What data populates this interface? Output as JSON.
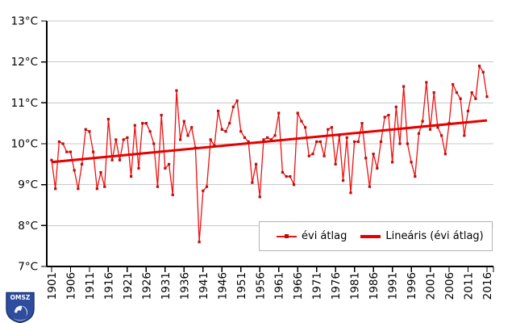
{
  "chart_data": {
    "type": "line",
    "title": "",
    "xlabel": "",
    "ylabel": "",
    "ylim": [
      7,
      13
    ],
    "grid": true,
    "legend_position": "bottom-inside",
    "ytick_labels": [
      "7°C",
      "8°C",
      "9°C",
      "10°C",
      "11°C",
      "12°C",
      "13°C"
    ],
    "xtick_labels": [
      "1901",
      "1906",
      "1911",
      "1916",
      "1921",
      "1926",
      "1931",
      "1936",
      "1941",
      "1946",
      "1951",
      "1956",
      "1961",
      "1966",
      "1971",
      "1976",
      "1981",
      "1986",
      "1991",
      "1996",
      "2001",
      "2006",
      "2011",
      "2016"
    ],
    "x": [
      1901,
      1902,
      1903,
      1904,
      1905,
      1906,
      1907,
      1908,
      1909,
      1910,
      1911,
      1912,
      1913,
      1914,
      1915,
      1916,
      1917,
      1918,
      1919,
      1920,
      1921,
      1922,
      1923,
      1924,
      1925,
      1926,
      1927,
      1928,
      1929,
      1930,
      1931,
      1932,
      1933,
      1934,
      1935,
      1936,
      1937,
      1938,
      1939,
      1940,
      1941,
      1942,
      1943,
      1944,
      1945,
      1946,
      1947,
      1948,
      1949,
      1950,
      1951,
      1952,
      1953,
      1954,
      1955,
      1956,
      1957,
      1958,
      1959,
      1960,
      1961,
      1962,
      1963,
      1964,
      1965,
      1966,
      1967,
      1968,
      1969,
      1970,
      1971,
      1972,
      1973,
      1974,
      1975,
      1976,
      1977,
      1978,
      1979,
      1980,
      1981,
      1982,
      1983,
      1984,
      1985,
      1986,
      1987,
      1988,
      1989,
      1990,
      1991,
      1992,
      1993,
      1994,
      1995,
      1996,
      1997,
      1998,
      1999,
      2000,
      2001,
      2002,
      2003,
      2004,
      2005,
      2006,
      2007,
      2008,
      2009,
      2010,
      2011,
      2012,
      2013,
      2014,
      2015,
      2016
    ],
    "series": [
      {
        "name": "évi átlag",
        "style": "line-with-square-markers",
        "color": "#ee1111",
        "marker_color": "#bb0f0f",
        "values": [
          9.6,
          8.9,
          10.05,
          10.0,
          9.8,
          9.8,
          9.35,
          8.9,
          9.5,
          10.35,
          10.3,
          9.8,
          8.9,
          9.3,
          8.95,
          10.6,
          9.6,
          10.1,
          9.6,
          10.1,
          10.15,
          9.2,
          10.45,
          9.4,
          10.5,
          10.5,
          10.3,
          10.0,
          8.95,
          10.7,
          9.4,
          9.5,
          8.75,
          11.3,
          10.1,
          10.55,
          10.2,
          10.4,
          9.9,
          7.6,
          8.85,
          8.95,
          10.1,
          9.95,
          10.8,
          10.35,
          10.3,
          10.5,
          10.9,
          11.05,
          10.3,
          10.15,
          10.05,
          9.05,
          9.5,
          8.7,
          10.1,
          10.15,
          10.1,
          10.2,
          10.75,
          9.3,
          9.2,
          9.2,
          9.0,
          10.75,
          10.55,
          10.4,
          9.7,
          9.75,
          10.05,
          10.05,
          9.7,
          10.35,
          10.4,
          9.5,
          10.2,
          9.1,
          10.15,
          8.8,
          10.05,
          10.05,
          10.5,
          9.65,
          8.95,
          9.75,
          9.4,
          10.05,
          10.65,
          10.7,
          9.55,
          10.9,
          10.0,
          11.4,
          10.0,
          9.55,
          9.2,
          10.25,
          10.55,
          11.5,
          10.35,
          11.25,
          10.4,
          10.2,
          9.75,
          10.5,
          11.45,
          11.25,
          11.1,
          10.2,
          10.8,
          11.25,
          11.1,
          11.9,
          11.75,
          11.15
        ]
      },
      {
        "name": "Lineáris (évi átlag)",
        "style": "thick-straight-trend",
        "color": "#e60000",
        "trend_start_value": 9.55,
        "trend_end_value": 10.57
      }
    ]
  },
  "legend": {
    "items": [
      {
        "label": "évi átlag"
      },
      {
        "label": "Lineáris (évi átlag)"
      }
    ]
  },
  "logo": {
    "text": "OMSZ"
  },
  "colors": {
    "series_line": "#ee1111",
    "series_marker": "#bb0f0f",
    "trend_line": "#e60000",
    "gridline": "#c9c9c9",
    "axis": "#000000",
    "legend_border": "#b3b3b3",
    "background": "#ffffff",
    "logo_blue": "#2e4d9e"
  }
}
